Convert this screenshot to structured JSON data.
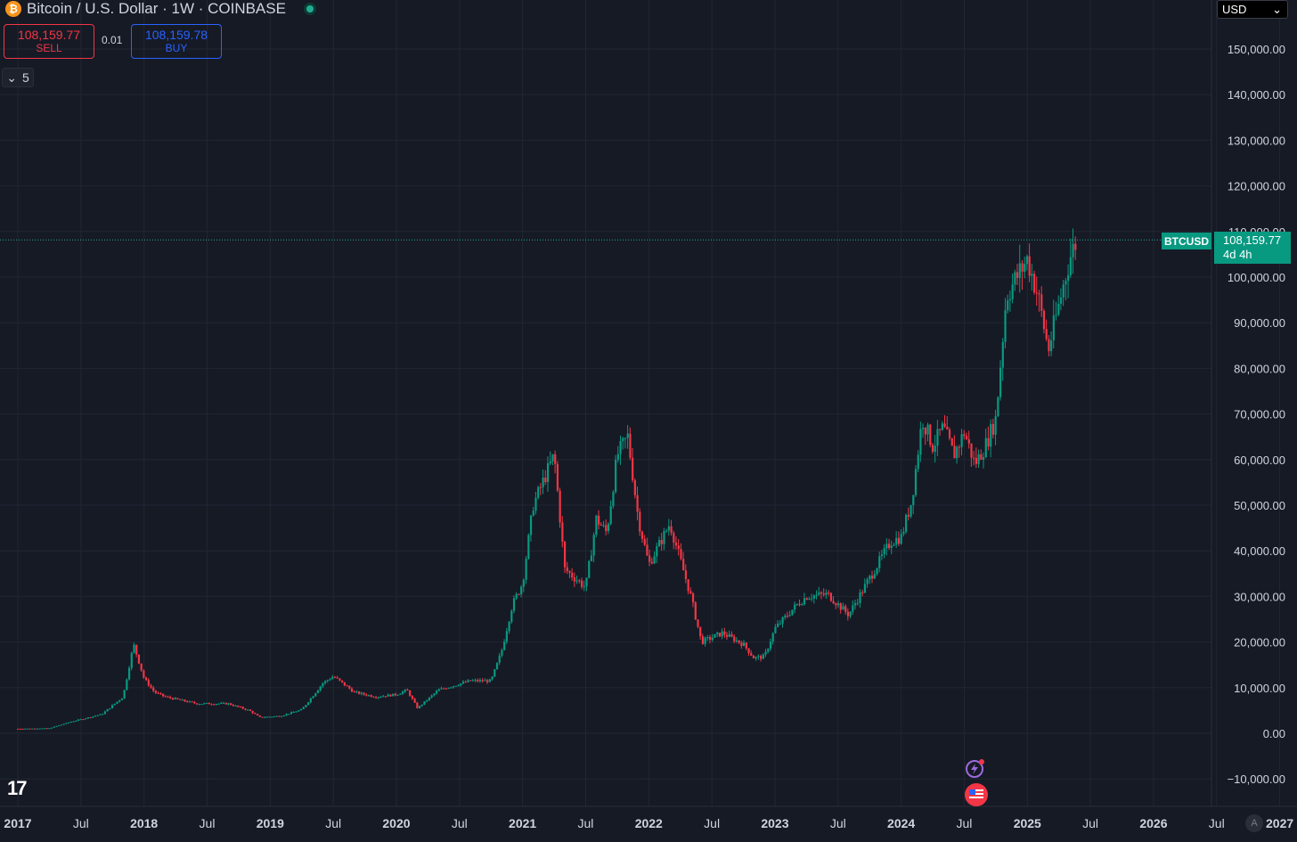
{
  "header": {
    "symbol_title": "Bitcoin / U.S. Dollar · 1W · COINBASE",
    "coin_icon": "₿"
  },
  "trade": {
    "sell_price": "108,159.77",
    "sell_label": "SELL",
    "spread": "0.01",
    "buy_price": "108,159.78",
    "buy_label": "BUY"
  },
  "indicators": {
    "count": "5"
  },
  "currency": {
    "label": "USD"
  },
  "last_price": {
    "symbol_tag": "BTCUSD",
    "price": "108,159.77",
    "countdown": "4d 4h",
    "value": 108159.77
  },
  "branding": {
    "logo": "17"
  },
  "scale_mode": "A",
  "colors": {
    "background": "#161a25",
    "up": "#089981",
    "down": "#f23645",
    "grid": "#222632",
    "text": "#d1d4dc",
    "crosshair": "#22ab94"
  },
  "chart_data": {
    "type": "candlestick",
    "title": "Bitcoin / U.S. Dollar · 1W · COINBASE",
    "x_ticks": [
      "2017",
      "Jul",
      "2018",
      "Jul",
      "2019",
      "Jul",
      "2020",
      "Jul",
      "2021",
      "Jul",
      "2022",
      "Jul",
      "2023",
      "Jul",
      "2024",
      "Jul",
      "2025",
      "Jul",
      "2026",
      "Jul",
      "2027"
    ],
    "y_ticks": [
      "150,000.00",
      "140,000.00",
      "130,000.00",
      "120,000.00",
      "110,000.00",
      "100,000.00",
      "90,000.00",
      "80,000.00",
      "70,000.00",
      "60,000.00",
      "50,000.00",
      "40,000.00",
      "30,000.00",
      "20,000.00",
      "10,000.00",
      "0.00",
      "−10,000.00"
    ],
    "ylim": [
      -10000,
      150000
    ],
    "xlim": [
      "2017-01",
      "2027-04"
    ],
    "grid": true,
    "price_path": [
      [
        "2017-01",
        1000
      ],
      [
        "2017-04",
        1100
      ],
      [
        "2017-06",
        2500
      ],
      [
        "2017-09",
        4200
      ],
      [
        "2017-11",
        8000
      ],
      [
        "2017-12",
        19500
      ],
      [
        "2018-01",
        12000
      ],
      [
        "2018-02",
        9000
      ],
      [
        "2018-03",
        8000
      ],
      [
        "2018-06",
        6500
      ],
      [
        "2018-09",
        6500
      ],
      [
        "2018-11",
        5000
      ],
      [
        "2018-12",
        3500
      ],
      [
        "2019-02",
        3800
      ],
      [
        "2019-04",
        5200
      ],
      [
        "2019-06",
        11000
      ],
      [
        "2019-07",
        12500
      ],
      [
        "2019-09",
        9000
      ],
      [
        "2019-11",
        8000
      ],
      [
        "2020-01",
        8500
      ],
      [
        "2020-02",
        9500
      ],
      [
        "2020-03",
        5500
      ],
      [
        "2020-05",
        9500
      ],
      [
        "2020-08",
        11500
      ],
      [
        "2020-10",
        11500
      ],
      [
        "2020-11",
        18000
      ],
      [
        "2020-12",
        28000
      ],
      [
        "2021-01",
        33000
      ],
      [
        "2021-02",
        50000
      ],
      [
        "2021-04",
        61000
      ],
      [
        "2021-05",
        36000
      ],
      [
        "2021-07",
        32000
      ],
      [
        "2021-08",
        47000
      ],
      [
        "2021-09",
        44000
      ],
      [
        "2021-10",
        61000
      ],
      [
        "2021-11",
        65000
      ],
      [
        "2021-12",
        47000
      ],
      [
        "2022-01",
        37000
      ],
      [
        "2022-03",
        46000
      ],
      [
        "2022-05",
        30000
      ],
      [
        "2022-06",
        20000
      ],
      [
        "2022-08",
        22000
      ],
      [
        "2022-10",
        19500
      ],
      [
        "2022-11",
        16500
      ],
      [
        "2022-12",
        16800
      ],
      [
        "2023-01",
        23000
      ],
      [
        "2023-03",
        28000
      ],
      [
        "2023-04",
        30000
      ],
      [
        "2023-06",
        30500
      ],
      [
        "2023-08",
        26000
      ],
      [
        "2023-10",
        34000
      ],
      [
        "2023-12",
        42000
      ],
      [
        "2024-01",
        43000
      ],
      [
        "2024-02",
        51000
      ],
      [
        "2024-03",
        69000
      ],
      [
        "2024-04",
        63000
      ],
      [
        "2024-05",
        67000
      ],
      [
        "2024-06",
        61000
      ],
      [
        "2024-07",
        66000
      ],
      [
        "2024-08",
        59000
      ],
      [
        "2024-09",
        63000
      ],
      [
        "2024-10",
        69000
      ],
      [
        "2024-11",
        96000
      ],
      [
        "2024-12",
        100000
      ],
      [
        "2025-01",
        104000
      ],
      [
        "2025-02",
        96000
      ],
      [
        "2025-03",
        84000
      ],
      [
        "2025-04",
        94000
      ],
      [
        "2025-05",
        104000
      ],
      [
        "2025-05-22",
        108159.77
      ]
    ]
  }
}
